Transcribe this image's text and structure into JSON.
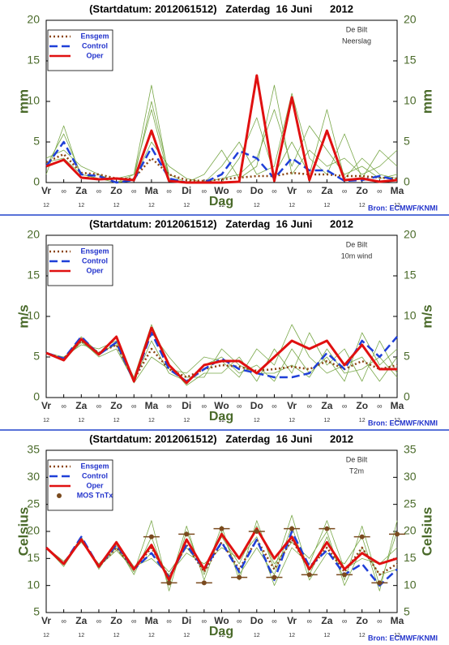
{
  "chart_data": [
    {
      "type": "line",
      "title": "(Startdatum: 2012061512)   Zaterdag  16 Juni      2012",
      "location": "De Bilt",
      "variable": "Neerslag",
      "ylabel": "mm",
      "xlabel": "Dag",
      "source": "Bron: ECMWF/KNMI",
      "categories": [
        "Vr",
        "∞",
        "Za",
        "∞",
        "Zo",
        "∞",
        "Ma",
        "∞",
        "Di",
        "∞",
        "Wo",
        "∞",
        "Do",
        "∞",
        "Vr",
        "∞",
        "Za",
        "∞",
        "Zo",
        "∞",
        "Ma"
      ],
      "hour_labels": [
        "12",
        null,
        "12",
        null,
        "12",
        null,
        "12",
        null,
        "12",
        null,
        "12",
        null,
        "12",
        null,
        "12",
        null,
        "12",
        null,
        "12",
        null,
        "12"
      ],
      "ylim": [
        0,
        20
      ],
      "yticks": [
        0,
        5,
        10,
        15,
        20
      ],
      "y2lim": [
        0,
        20
      ],
      "y2ticks": [
        0,
        5,
        10,
        15,
        20
      ],
      "member_color": "#7aa84a",
      "members": [
        [
          2,
          6,
          1,
          0.5,
          0,
          0.5,
          10,
          1,
          0,
          0,
          0.5,
          1,
          3,
          9,
          2,
          7,
          4,
          1,
          2,
          0.5,
          1
        ],
        [
          3,
          4,
          2,
          1,
          0,
          1,
          12,
          0.5,
          0,
          0,
          2,
          5,
          1,
          2,
          11,
          3,
          1,
          6,
          0.5,
          4,
          2
        ],
        [
          1,
          7,
          0.5,
          1,
          0,
          0.3,
          5,
          2,
          0.5,
          0,
          0,
          3,
          8,
          1,
          5,
          1,
          9,
          0.5,
          3,
          1,
          0.5
        ],
        [
          2.5,
          3,
          1,
          0.5,
          0.5,
          1,
          9,
          0.5,
          0,
          1,
          4,
          0.5,
          2,
          12,
          1,
          4,
          2,
          3,
          1,
          2,
          4
        ]
      ],
      "series": [
        {
          "name": "Ensgem",
          "color": "#8b4513",
          "style": "dotted",
          "values": [
            2.5,
            3.5,
            1.2,
            1,
            0.5,
            0.5,
            3,
            1,
            0.3,
            0.2,
            0.4,
            0.6,
            0.8,
            0.8,
            1.2,
            1,
            1,
            0.8,
            0.8,
            0.6,
            0.5
          ]
        },
        {
          "name": "Control",
          "color": "#1f3fd8",
          "style": "dashed",
          "values": [
            2,
            5,
            1,
            0.8,
            0,
            0.3,
            4.3,
            0.5,
            0,
            0,
            1,
            3.9,
            3,
            0.5,
            3,
            1.5,
            1.5,
            0.2,
            0.3,
            0.8,
            0.3
          ]
        },
        {
          "name": "Oper",
          "color": "#e01010",
          "style": "solid",
          "values": [
            2,
            2.8,
            0.6,
            0.4,
            0.5,
            0.3,
            6.4,
            0.2,
            0,
            0,
            0,
            0.1,
            13.2,
            0.2,
            10.5,
            0.3,
            6.4,
            0.3,
            0.5,
            0.1,
            0.3
          ]
        }
      ]
    },
    {
      "type": "line",
      "title": "(Startdatum: 2012061512)   Zaterdag  16 Juni      2012",
      "location": "De Bilt",
      "variable": "10m wind",
      "ylabel": "m/s",
      "xlabel": "Dag",
      "source": "Bron: ECMWF/KNMI",
      "categories": [
        "Vr",
        "∞",
        "Za",
        "∞",
        "Zo",
        "∞",
        "Ma",
        "∞",
        "Di",
        "∞",
        "Wo",
        "∞",
        "Do",
        "∞",
        "Vr",
        "∞",
        "Za",
        "∞",
        "Zo",
        "∞",
        "Ma"
      ],
      "hour_labels": [
        "12",
        null,
        "12",
        null,
        "12",
        null,
        "12",
        null,
        "12",
        null,
        "12",
        null,
        "12",
        null,
        "12",
        null,
        "12",
        null,
        "12",
        null,
        "12"
      ],
      "ylim": [
        0,
        20
      ],
      "yticks": [
        0,
        5,
        10,
        15,
        20
      ],
      "y2lim": [
        0,
        20
      ],
      "y2ticks": [
        0,
        5,
        10,
        15,
        20
      ],
      "member_color": "#7aa84a",
      "members": [
        [
          5.5,
          4.5,
          7,
          5,
          6,
          2,
          7,
          3,
          2,
          4,
          5,
          3,
          4,
          2,
          6,
          3,
          5,
          2,
          8,
          4,
          6
        ],
        [
          5.5,
          5,
          6.5,
          6,
          7,
          2.5,
          9,
          4,
          1.5,
          3,
          3,
          5,
          2,
          6,
          3,
          8,
          4,
          6,
          2,
          7,
          3
        ],
        [
          5.5,
          4.8,
          7.5,
          5.5,
          6.5,
          1.8,
          5,
          3.5,
          3,
          5,
          4.5,
          2.5,
          6,
          4,
          9,
          5,
          3,
          4,
          5,
          2,
          5
        ],
        [
          5.5,
          4.6,
          6.8,
          5.2,
          6.8,
          2.2,
          8,
          5,
          2.5,
          2.5,
          6,
          4,
          3,
          3,
          4,
          2.5,
          6,
          3,
          3.5,
          5,
          2.5
        ]
      ],
      "series": [
        {
          "name": "Ensgem",
          "color": "#8b4513",
          "style": "dotted",
          "values": [
            5.5,
            4.8,
            7,
            5.5,
            6.5,
            2.2,
            6,
            3.5,
            2.5,
            3.5,
            4,
            3.8,
            3.3,
            3.5,
            3.8,
            3.5,
            4.5,
            3.5,
            4.5,
            3.5,
            4
          ]
        },
        {
          "name": "Control",
          "color": "#1f3fd8",
          "style": "dashed",
          "values": [
            5.5,
            4.8,
            7.5,
            5.3,
            6.8,
            2,
            8,
            3.5,
            2,
            3.5,
            4.8,
            3.5,
            3,
            2.5,
            2.5,
            3,
            5.5,
            3.5,
            7,
            5,
            7.5
          ]
        },
        {
          "name": "Oper",
          "color": "#e01010",
          "style": "solid",
          "values": [
            5.5,
            4.6,
            7.2,
            5.3,
            7.5,
            2,
            8.6,
            4,
            1.8,
            4,
            4.5,
            4.5,
            3,
            5,
            7,
            6,
            7,
            4,
            6.5,
            3.5,
            3.5
          ]
        }
      ]
    },
    {
      "type": "line",
      "title": "(Startdatum: 2012061512)   Zaterdag  16 Juni      2012",
      "location": "De Bilt",
      "variable": "T2m",
      "ylabel": "Celsius",
      "xlabel": "Dag",
      "source": "Bron: ECMWF/KNMI",
      "categories": [
        "Vr",
        "∞",
        "Za",
        "∞",
        "Zo",
        "∞",
        "Ma",
        "∞",
        "Di",
        "∞",
        "Wo",
        "∞",
        "Do",
        "∞",
        "Vr",
        "∞",
        "Za",
        "∞",
        "Zo",
        "∞",
        "Ma"
      ],
      "hour_labels": [
        "12",
        null,
        "12",
        null,
        "12",
        null,
        "12",
        null,
        "12",
        null,
        "12",
        null,
        "12",
        null,
        "12",
        null,
        "12",
        null,
        "12",
        null,
        "12"
      ],
      "ylim": [
        5,
        35
      ],
      "yticks": [
        5,
        10,
        15,
        20,
        25,
        30,
        35
      ],
      "y2lim": [
        5,
        35
      ],
      "y2ticks": [
        5,
        10,
        15,
        20,
        25,
        30,
        35
      ],
      "member_color": "#7aa84a",
      "members": [
        [
          17,
          14,
          18.5,
          13.5,
          17,
          12.5,
          22,
          9,
          20,
          12,
          21,
          11,
          22,
          13,
          23,
          12,
          19,
          11,
          21,
          10,
          20
        ],
        [
          17,
          14,
          19,
          13,
          18,
          13.5,
          15,
          12,
          16,
          14,
          17,
          15,
          19,
          10,
          17,
          14,
          22,
          13,
          15,
          14,
          17
        ],
        [
          17,
          14.5,
          18,
          14,
          17.5,
          12,
          19,
          10,
          21,
          11,
          20,
          12,
          17,
          12,
          21,
          11,
          16,
          14,
          19,
          9,
          22
        ],
        [
          17,
          13.5,
          18.5,
          13.5,
          16.5,
          13,
          16,
          12.5,
          17,
          13,
          19,
          14,
          21,
          14,
          18,
          15,
          20,
          10,
          17,
          12,
          13
        ]
      ],
      "series": [
        {
          "name": "Ensgem",
          "color": "#8b4513",
          "style": "dotted",
          "values": [
            17,
            14,
            18.5,
            13.5,
            17,
            13,
            17,
            11.5,
            17.5,
            12.5,
            18,
            13,
            18.5,
            13,
            18.5,
            13,
            17,
            12.5,
            17,
            12,
            14
          ]
        },
        {
          "name": "Control",
          "color": "#1f3fd8",
          "style": "dashed",
          "values": [
            17,
            14,
            19,
            13.5,
            17.5,
            13,
            16,
            11.5,
            17.5,
            13,
            18,
            12.5,
            18.5,
            11,
            20,
            13.5,
            16.5,
            12,
            14,
            10,
            13
          ]
        },
        {
          "name": "Oper",
          "color": "#e01010",
          "style": "solid",
          "values": [
            17,
            14,
            18.5,
            13.5,
            18,
            13,
            17.5,
            11,
            18.5,
            13,
            19.5,
            15,
            20.5,
            15,
            19,
            13,
            18,
            13,
            16,
            14,
            15
          ]
        },
        {
          "name": "MOS TnTx",
          "color": "#7a4a1e",
          "style": "points",
          "values": [
            null,
            null,
            null,
            null,
            null,
            null,
            19,
            10.5,
            19.5,
            10.5,
            20.5,
            11.5,
            20,
            11.5,
            20.5,
            12,
            20.5,
            12,
            19,
            10.5,
            19.5
          ]
        }
      ]
    }
  ]
}
